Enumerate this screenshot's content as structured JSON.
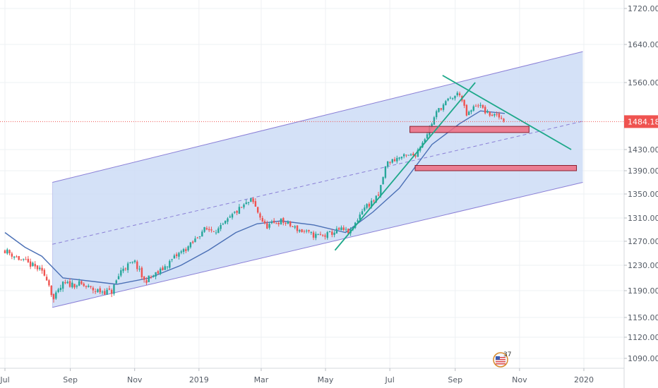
{
  "chart_data": {
    "type": "candlestick",
    "instrument_timeframe": "daily",
    "x_tick_labels": [
      "Jul",
      "Sep",
      "Nov",
      "2019",
      "Mar",
      "May",
      "Jul",
      "Sep",
      "Nov",
      "2020"
    ],
    "y_tick_labels": [
      "1720.00",
      "1640.00",
      "1560.00",
      "1430.00",
      "1390.00",
      "1350.00",
      "1310.00",
      "1270.00",
      "1230.00",
      "1190.00",
      "1150.00",
      "1120.00",
      "1090.00"
    ],
    "y_ticks": [
      1720,
      1640,
      1560,
      1430,
      1390,
      1350,
      1310,
      1270,
      1230,
      1190,
      1150,
      1120,
      1090
    ],
    "ylim": [
      1070,
      1740
    ],
    "last_price": 1484.18,
    "last_price_label": "1484.18",
    "price_path": [
      [
        "2018-07-01",
        1255
      ],
      [
        "2018-07-15",
        1240
      ],
      [
        "2018-08-01",
        1225
      ],
      [
        "2018-08-10",
        1210
      ],
      [
        "2018-08-16",
        1176
      ],
      [
        "2018-08-25",
        1200
      ],
      [
        "2018-09-10",
        1200
      ],
      [
        "2018-09-25",
        1190
      ],
      [
        "2018-10-10",
        1188
      ],
      [
        "2018-10-20",
        1225
      ],
      [
        "2018-11-01",
        1235
      ],
      [
        "2018-11-10",
        1205
      ],
      [
        "2018-11-25",
        1220
      ],
      [
        "2018-12-10",
        1245
      ],
      [
        "2018-12-25",
        1265
      ],
      [
        "2019-01-05",
        1290
      ],
      [
        "2019-01-20",
        1290
      ],
      [
        "2019-02-05",
        1320
      ],
      [
        "2019-02-20",
        1340
      ],
      [
        "2019-03-05",
        1295
      ],
      [
        "2019-03-20",
        1305
      ],
      [
        "2019-04-05",
        1290
      ],
      [
        "2019-04-20",
        1280
      ],
      [
        "2019-05-01",
        1280
      ],
      [
        "2019-05-15",
        1290
      ],
      [
        "2019-05-25",
        1285
      ],
      [
        "2019-06-05",
        1325
      ],
      [
        "2019-06-20",
        1345
      ],
      [
        "2019-06-28",
        1405
      ],
      [
        "2019-07-10",
        1415
      ],
      [
        "2019-07-25",
        1420
      ],
      [
        "2019-08-05",
        1460
      ],
      [
        "2019-08-15",
        1505
      ],
      [
        "2019-08-25",
        1525
      ],
      [
        "2019-09-05",
        1540
      ],
      [
        "2019-09-12",
        1495
      ],
      [
        "2019-09-22",
        1520
      ],
      [
        "2019-10-01",
        1500
      ],
      [
        "2019-10-10",
        1495
      ],
      [
        "2019-10-18",
        1488
      ]
    ],
    "baseline_path": [
      [
        "2018-07-01",
        1285
      ],
      [
        "2018-07-20",
        1260
      ],
      [
        "2018-08-05",
        1245
      ],
      [
        "2018-08-25",
        1210
      ],
      [
        "2018-09-20",
        1205
      ],
      [
        "2018-10-15",
        1200
      ],
      [
        "2018-11-15",
        1210
      ],
      [
        "2018-12-15",
        1230
      ],
      [
        "2019-01-10",
        1255
      ],
      [
        "2019-02-05",
        1285
      ],
      [
        "2019-02-25",
        1300
      ],
      [
        "2019-03-20",
        1305
      ],
      [
        "2019-04-20",
        1298
      ],
      [
        "2019-05-20",
        1285
      ],
      [
        "2019-06-15",
        1320
      ],
      [
        "2019-07-10",
        1360
      ],
      [
        "2019-08-10",
        1440
      ],
      [
        "2019-09-05",
        1480
      ],
      [
        "2019-09-25",
        1505
      ],
      [
        "2019-10-18",
        1500
      ]
    ],
    "regression_channel": {
      "start_date": "2018-08-15",
      "end_date": "2019-12-31",
      "upper": [
        1370,
        1625
      ],
      "mid": [
        1265,
        1485
      ],
      "lower": [
        1165,
        1370
      ]
    },
    "trend_lines": [
      {
        "name": "support",
        "from": [
          "2019-05-10",
          1255
        ],
        "to": [
          "2019-09-20",
          1560
        ]
      },
      {
        "name": "resistance",
        "from": [
          "2019-08-20",
          1575
        ],
        "to": [
          "2019-12-20",
          1430
        ]
      }
    ],
    "zones": [
      {
        "name": "upper-zone",
        "from": [
          "2019-07-20",
          1463
        ],
        "to": [
          "2019-11-10",
          1475
        ]
      },
      {
        "name": "lower-zone",
        "from": [
          "2019-07-25",
          1390
        ],
        "to": [
          "2019-12-25",
          1400
        ]
      }
    ],
    "colors": {
      "up": "#26a69a",
      "down": "#ef5350",
      "baseline": "#4a6fb5",
      "channel_fill": "#cddcf6",
      "channel_line": "#8a7fd6",
      "trend_line": "#1ea88a",
      "zone_fill": "#ee6b80",
      "zone_border": "#8b1e2e",
      "price_tag": "#ef5350",
      "grid": "#eef0f3"
    },
    "grid": true,
    "legend": "none"
  },
  "badge": {
    "icon": "us-flag-icon",
    "count": "37"
  }
}
